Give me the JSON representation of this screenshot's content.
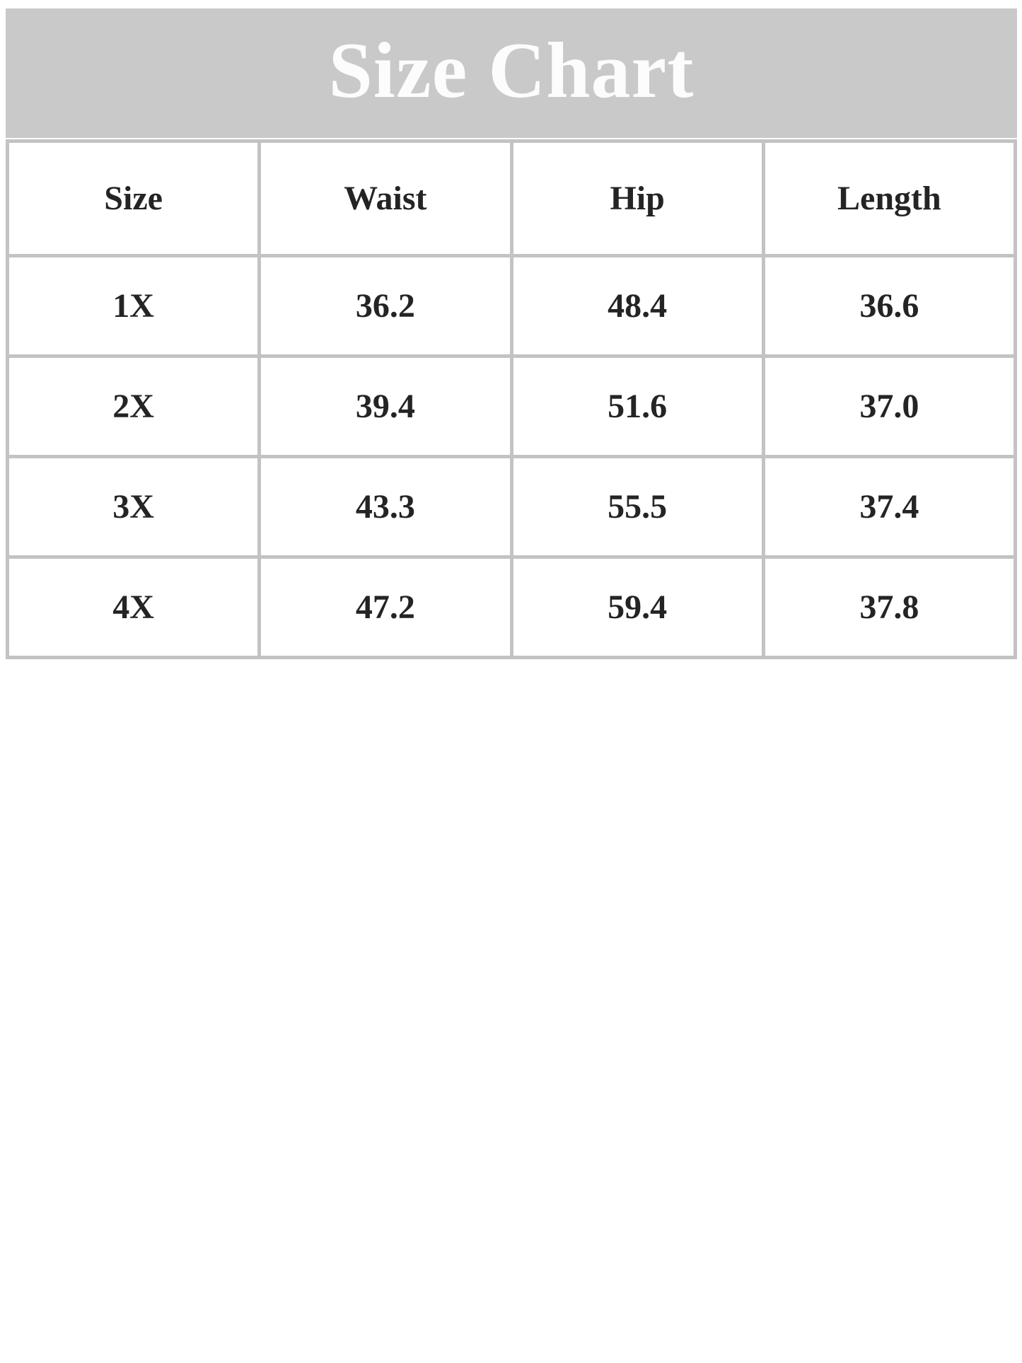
{
  "title": "Size Chart",
  "banner": {
    "background_color": "#c9c9c9",
    "title_color": "#fcfcfc"
  },
  "table": {
    "border_color": "#c3c3c3",
    "text_color": "#242424",
    "headers": [
      "Size",
      "Waist",
      "Hip",
      "Length"
    ],
    "rows": [
      {
        "size": "1X",
        "waist": "36.2",
        "hip": "48.4",
        "length": "36.6"
      },
      {
        "size": "2X",
        "waist": "39.4",
        "hip": "51.6",
        "length": "37.0"
      },
      {
        "size": "3X",
        "waist": "43.3",
        "hip": "55.5",
        "length": "37.4"
      },
      {
        "size": "4X",
        "waist": "47.2",
        "hip": "59.4",
        "length": "37.8"
      }
    ]
  },
  "chart_data": {
    "type": "table",
    "title": "Size Chart",
    "columns": [
      "Size",
      "Waist",
      "Hip",
      "Length"
    ],
    "rows": [
      [
        "1X",
        36.2,
        48.4,
        36.6
      ],
      [
        "2X",
        39.4,
        51.6,
        37.0
      ],
      [
        "3X",
        43.3,
        55.5,
        37.4
      ],
      [
        "4X",
        47.2,
        59.4,
        37.8
      ]
    ]
  }
}
